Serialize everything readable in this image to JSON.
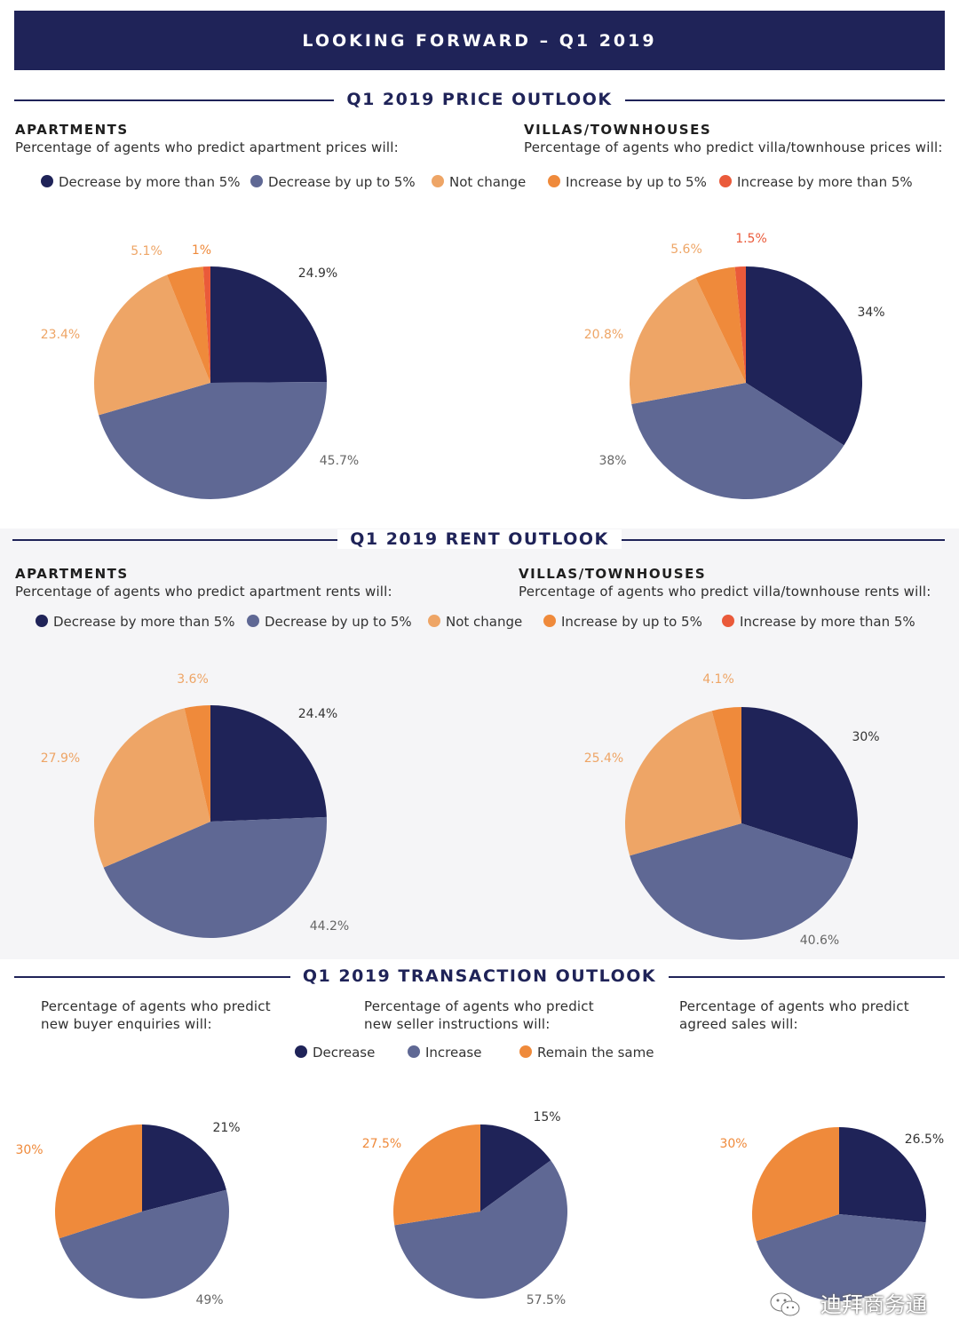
{
  "banner": "LOOKING FORWARD – Q1 2019",
  "colors": {
    "dec_more": "#1f2358",
    "dec_up": "#5f6894",
    "not_change": "#eea566",
    "inc_up": "#ef8a3b",
    "inc_more": "#ea5a3a",
    "decrease": "#1f2358",
    "increase": "#5f6894",
    "remain": "#ef8a3b"
  },
  "price": {
    "title": "Q1 2019 PRICE OUTLOOK",
    "apartments": {
      "type": "APARTMENTS",
      "subtitle": "Percentage of agents who predict apartment prices will:"
    },
    "villas": {
      "type": "VILLAS/TOWNHOUSES",
      "subtitle": "Percentage of agents who predict villa/townhouse prices will:"
    },
    "legend": [
      "Decrease by more than 5%",
      "Decrease by up to 5%",
      "Not change",
      "Increase by up to 5%",
      "Increase by more than 5%"
    ]
  },
  "rent": {
    "title": "Q1 2019 RENT OUTLOOK",
    "apartments": {
      "type": "APARTMENTS",
      "subtitle": "Percentage of agents who predict apartment rents will:"
    },
    "villas": {
      "type": "VILLAS/TOWNHOUSES",
      "subtitle": "Percentage of agents who predict villa/townhouse rents will:"
    },
    "legend": [
      "Decrease by more than 5%",
      "Decrease by up to 5%",
      "Not change",
      "Increase by up to 5%",
      "Increase by more than 5%"
    ]
  },
  "transaction": {
    "title": "Q1 2019 TRANSACTION OUTLOOK",
    "buyer": {
      "line1": "Percentage of agents who predict",
      "line2": "new buyer enquiries will:"
    },
    "seller": {
      "line1": "Percentage of agents who predict",
      "line2": "new seller instructions will:"
    },
    "sales": {
      "line1": "Percentage of agents who predict",
      "line2": "agreed sales will:"
    },
    "legend": [
      "Decrease",
      "Increase",
      "Remain the same"
    ]
  },
  "watermark": "迪拜商务通",
  "chart_data": [
    {
      "type": "pie",
      "title": "APARTMENTS prices",
      "categories": [
        "Decrease by more than 5%",
        "Decrease by up to 5%",
        "Not change",
        "Increase by up to 5%",
        "Increase by more than 5%"
      ],
      "values": [
        24.9,
        45.7,
        23.4,
        5.1,
        1.0
      ],
      "labels": [
        "24.9%",
        "45.7%",
        "23.4%",
        "5.1%",
        "1%"
      ]
    },
    {
      "type": "pie",
      "title": "VILLAS/TOWNHOUSES prices",
      "categories": [
        "Decrease by more than 5%",
        "Decrease by up to 5%",
        "Not change",
        "Increase by up to 5%",
        "Increase by more than 5%"
      ],
      "values": [
        34.0,
        38.0,
        20.8,
        5.6,
        1.5
      ],
      "labels": [
        "34%",
        "38%",
        "20.8%",
        "5.6%",
        "1.5%"
      ]
    },
    {
      "type": "pie",
      "title": "APARTMENTS rents",
      "categories": [
        "Decrease by more than 5%",
        "Decrease by up to 5%",
        "Not change",
        "Increase by up to 5%"
      ],
      "values": [
        24.4,
        44.2,
        27.9,
        3.6
      ],
      "labels": [
        "24.4%",
        "44.2%",
        "27.9%",
        "3.6%"
      ]
    },
    {
      "type": "pie",
      "title": "VILLAS/TOWNHOUSES rents",
      "categories": [
        "Decrease by more than 5%",
        "Decrease by up to 5%",
        "Not change",
        "Increase by up to 5%"
      ],
      "values": [
        30.0,
        40.6,
        25.4,
        4.1
      ],
      "labels": [
        "30%",
        "40.6%",
        "25.4%",
        "4.1%"
      ]
    },
    {
      "type": "pie",
      "title": "new buyer enquiries",
      "categories": [
        "Decrease",
        "Increase",
        "Remain the same"
      ],
      "values": [
        21,
        49,
        30
      ],
      "labels": [
        "21%",
        "49%",
        "30%"
      ]
    },
    {
      "type": "pie",
      "title": "new seller instructions",
      "categories": [
        "Decrease",
        "Increase",
        "Remain the same"
      ],
      "values": [
        15,
        57.5,
        27.5
      ],
      "labels": [
        "15%",
        "57.5%",
        "27.5%"
      ]
    },
    {
      "type": "pie",
      "title": "agreed sales",
      "categories": [
        "Decrease",
        "Increase",
        "Remain the same"
      ],
      "values": [
        26.5,
        43.5,
        30
      ],
      "labels": [
        "26.5%",
        "",
        "30%"
      ]
    }
  ]
}
